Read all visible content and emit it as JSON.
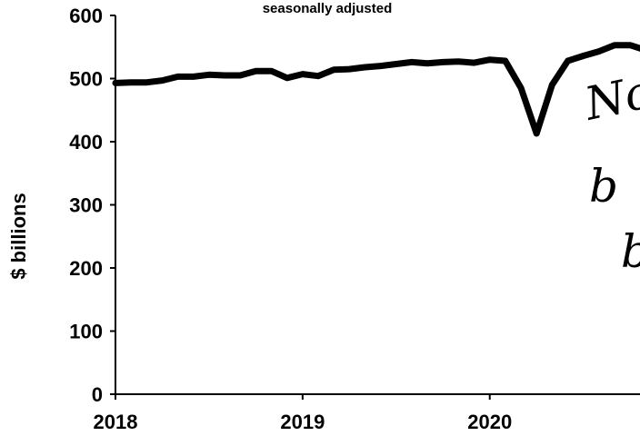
{
  "chart_data": {
    "type": "line",
    "subtitle": "seasonally adjusted",
    "ylabel": "$ billions",
    "ylim": [
      0,
      600
    ],
    "yticks": [
      0,
      100,
      200,
      300,
      400,
      500,
      600
    ],
    "xlim": [
      2018,
      2020.9
    ],
    "xticks": [
      2018,
      2019,
      2020
    ],
    "xtick_labels": [
      "2018",
      "2019",
      "2020"
    ],
    "grid": false,
    "series": [
      {
        "color": "#000000",
        "x": [
          2018.0,
          2018.083,
          2018.167,
          2018.25,
          2018.333,
          2018.417,
          2018.5,
          2018.583,
          2018.667,
          2018.75,
          2018.833,
          2018.917,
          2019.0,
          2019.083,
          2019.167,
          2019.25,
          2019.333,
          2019.417,
          2019.5,
          2019.583,
          2019.667,
          2019.75,
          2019.833,
          2019.917,
          2020.0,
          2020.083,
          2020.167,
          2020.25,
          2020.333,
          2020.417,
          2020.5,
          2020.583,
          2020.667,
          2020.75,
          2020.833
        ],
        "values": [
          493,
          494,
          494,
          497,
          503,
          503,
          506,
          505,
          505,
          512,
          512,
          501,
          507,
          504,
          514,
          515,
          518,
          520,
          523,
          526,
          524,
          526,
          527,
          525,
          530,
          528,
          485,
          413,
          490,
          528,
          536,
          543,
          553,
          553,
          545
        ]
      }
    ],
    "annotations": [
      "No",
      "b",
      "b"
    ]
  }
}
